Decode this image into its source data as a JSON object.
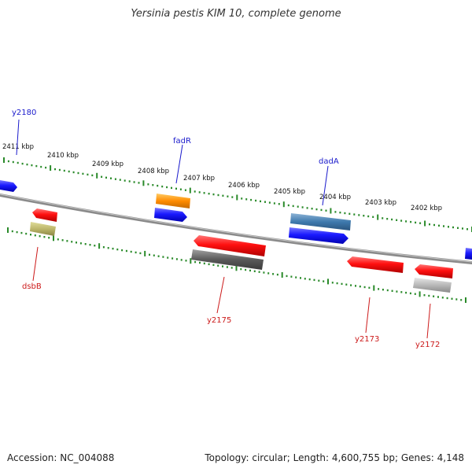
{
  "title": "Yersinia pestis KIM 10, complete genome",
  "footer": {
    "accession": "Accession: NC_004088",
    "summary": "Topology: circular; Length: 4,600,755 bp; Genes: 4,148"
  },
  "colors": {
    "backbone": "#8a8a8a",
    "tick": "#2a8a2a",
    "label_forward": "#1a1acc",
    "label_reverse": "#cc1a1a"
  },
  "scale_labels": [
    "2411 kbp",
    "2410 kbp",
    "2409 kbp",
    "2408 kbp",
    "2407 kbp",
    "2406 kbp",
    "2405 kbp",
    "2404 kbp",
    "2403 kbp",
    "2402 kbp"
  ],
  "gene_labels": [
    {
      "name": "y2180",
      "strand": "forward"
    },
    {
      "name": "fadR",
      "strand": "forward"
    },
    {
      "name": "dadA",
      "strand": "forward"
    },
    {
      "name": "dsbB",
      "strand": "reverse"
    },
    {
      "name": "y2175",
      "strand": "reverse"
    },
    {
      "name": "y2173",
      "strand": "reverse"
    },
    {
      "name": "y2172",
      "strand": "reverse"
    }
  ]
}
